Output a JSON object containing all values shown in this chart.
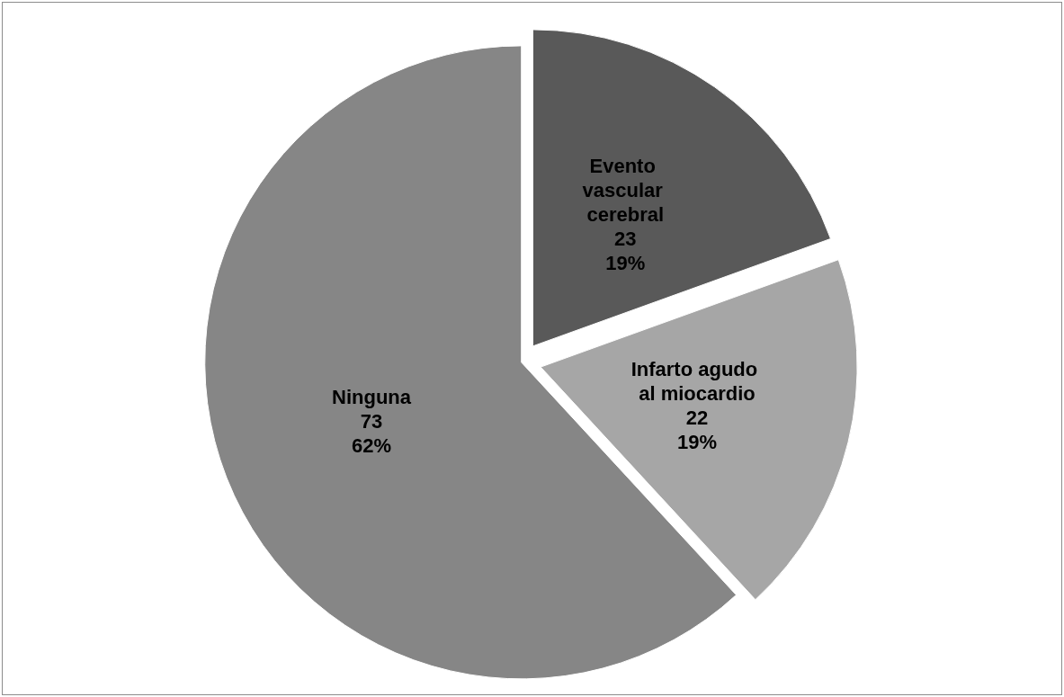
{
  "chart_data": {
    "type": "pie",
    "categories": [
      "Evento vascular cerebral",
      "Infarto agudo al miocardio",
      "Ninguna"
    ],
    "values": [
      23,
      22,
      73
    ],
    "colors": [
      "#595959",
      "#a6a6a6",
      "#868686"
    ],
    "value_labels": [
      "23\n19%",
      "22\n19%",
      "73\n62%"
    ],
    "legend": false
  }
}
